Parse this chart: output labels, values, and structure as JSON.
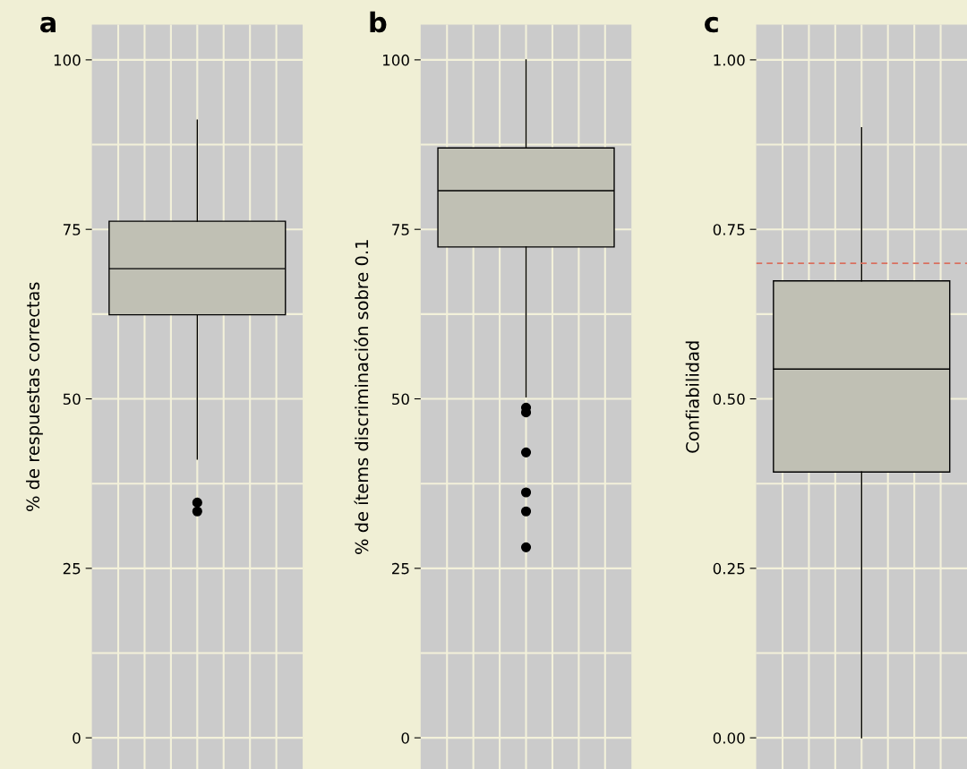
{
  "chart_data": [
    {
      "type": "box",
      "title": "a",
      "ylabel": "% de respuestas correctas",
      "categories": [
        null
      ],
      "ylim": [
        -4.6,
        105.2
      ],
      "yticks": [
        0,
        25,
        50,
        75,
        100
      ],
      "grid": true,
      "tick_labels": "y",
      "series": [
        {
          "color": "#c0c0b4",
          "boxes": [
            {
              "low": 41.1,
              "q1": 62.4,
              "median": 69.2,
              "q3": 76.2,
              "high": 91.1,
              "outliers": [
                34.7,
                33.4
              ]
            }
          ]
        }
      ]
    },
    {
      "type": "box",
      "title": "b",
      "ylabel": "% de ítems discriminación sobre 0.1",
      "categories": [
        null
      ],
      "ylim": [
        -4.6,
        105.2
      ],
      "yticks": [
        0,
        25,
        50,
        75,
        100
      ],
      "grid": true,
      "tick_labels": "y",
      "series": [
        {
          "color": "#c0c0b4",
          "boxes": [
            {
              "low": 50.3,
              "q1": 72.4,
              "median": 80.7,
              "q3": 87.0,
              "high": 100,
              "outliers": [
                48.7,
                48.0,
                42.1,
                36.2,
                33.4,
                28.1
              ]
            }
          ]
        }
      ]
    },
    {
      "type": "box",
      "title": "c",
      "ylabel": "Confiabilidad",
      "categories": [
        null
      ],
      "ylim": [
        -0.046,
        1.052
      ],
      "yticks": [
        {
          "value": 0,
          "label": "0.00"
        },
        {
          "value": 0.25,
          "label": "0.25"
        },
        {
          "value": 0.5,
          "label": "0.50"
        },
        {
          "value": 0.75,
          "label": "0.75"
        },
        {
          "value": 1,
          "label": "1.00"
        }
      ],
      "grid": true,
      "tick_labels": "y",
      "ref_lines": [
        {
          "axis": "y",
          "value": 0.7,
          "color": "#d9705f",
          "line_style": "dashed"
        }
      ],
      "series": [
        {
          "color": "#c0c0b4",
          "boxes": [
            {
              "low": 0,
              "q1": 0.392,
              "median": 0.544,
              "q3": 0.674,
              "high": 0.9
            }
          ]
        }
      ]
    }
  ]
}
